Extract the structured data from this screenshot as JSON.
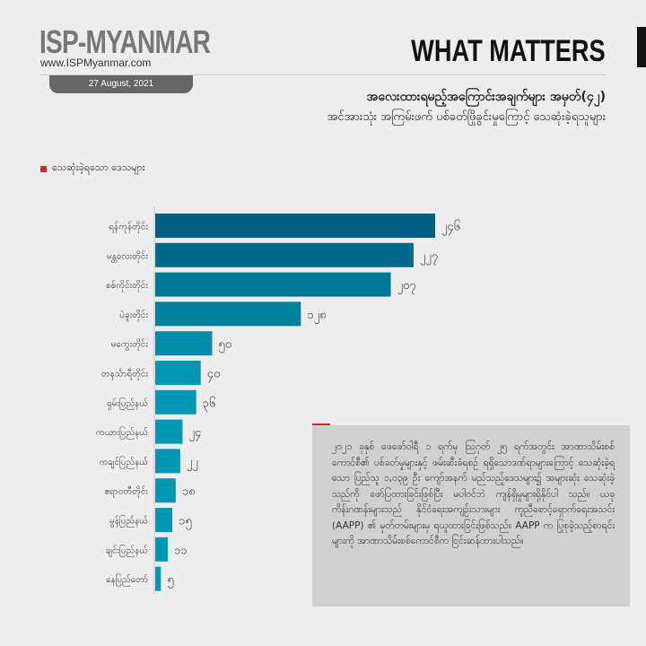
{
  "header": {
    "logo": "ISP-MYANMAR",
    "url": "www.ISPMyanmar.com",
    "watermark": "WHAT MATTERS",
    "date": "27 August, 2021",
    "title": "အလေးထားရမည့်အကြောင်းအချက်များ အမှတ်(၄၂)",
    "subtitle": "အင်အားသုံး အကြမ်းဖက် ပစ်ခတ်ဖြိုခွင်းမှုကြောင့် သေဆုံးခဲ့ရသူများ"
  },
  "section_label": "သေဆုံးခဲ့ရသော ဒေသများ",
  "colors": {
    "dark": "#005f80",
    "light": "#0097b2",
    "accent": "#e0202a"
  },
  "chart_data": {
    "type": "bar",
    "orientation": "horizontal",
    "title": "သေဆုံးခဲ့ရသော ဒေသများ",
    "categories": [
      "ရန်ကုန်တိုင်း",
      "မန္တလေးတိုင်း",
      "စစ်ကိုင်းတိုင်း",
      "ပဲခူးတိုင်း",
      "မကွေးတိုင်း",
      "တနင်္သာရီတိုင်း",
      "ရှမ်းပြည်နယ်",
      "ကယားပြည်နယ်",
      "ကချင်ပြည်နယ်",
      "ဧရာဝတီတိုင်း",
      "မွန်ပြည်နယ်",
      "ချင်းပြည်နယ်",
      "နေပြည်တော်"
    ],
    "values": [
      246,
      227,
      207,
      128,
      50,
      40,
      36,
      24,
      22,
      18,
      15,
      11,
      5
    ],
    "value_labels": [
      "၂၄၆",
      "၂၂၇",
      "၂၀၇",
      "၁၂၈",
      "၅၀",
      "၄၀",
      "၃၆",
      "၂၄",
      "၂၂",
      "၁၈",
      "၁၅",
      "၁၁",
      "၅"
    ],
    "xlim": [
      0,
      246
    ],
    "grid": false
  },
  "note": "၂၀၂၁ ခုနှစ် ဖေဖော်ဝါရီ ၁ ရက်မှ ဩဂုတ် ၂၅ ရက်အတွင်း အာဏာသိမ်းစစ်ကောင်စီ၏ ပစ်ခတ်မှုများနှင့် ဖမ်းဆီးခံရစဉ် ရရှိသောဒဏ်ရာများကြောင့် သေဆုံးခဲ့ရသော ပြည်သူ ၁,၀၃၉ ဦး ကျော်အနက် မည်သည့်ဒေသများ၌ အများဆုံး သေဆုံးခဲ့သည်ကို ဖော်ပြထားခြင်းဖြစ်ပြီး မပါဝင်ဘဲ ကျန်ရှိမှုများရှိနိုင်ပါ သည်။ ယခုကိန်းဂဏန်းများသည် နိုင်ငံရေးအကျဉ်းသားများ ကူညီစောင့်ရှောက်ရေးအသင်း (AAPP) ၏ မှတ်တမ်းများမှ ရယူထားခြင်းဖြစ်သည်။ AAPP က ပြုစုခဲ့သည့်စာရင်းများကို အာဏာသိမ်းစစ်ကောင်စီက ငြင်းဆန်ထားပါသည်။"
}
